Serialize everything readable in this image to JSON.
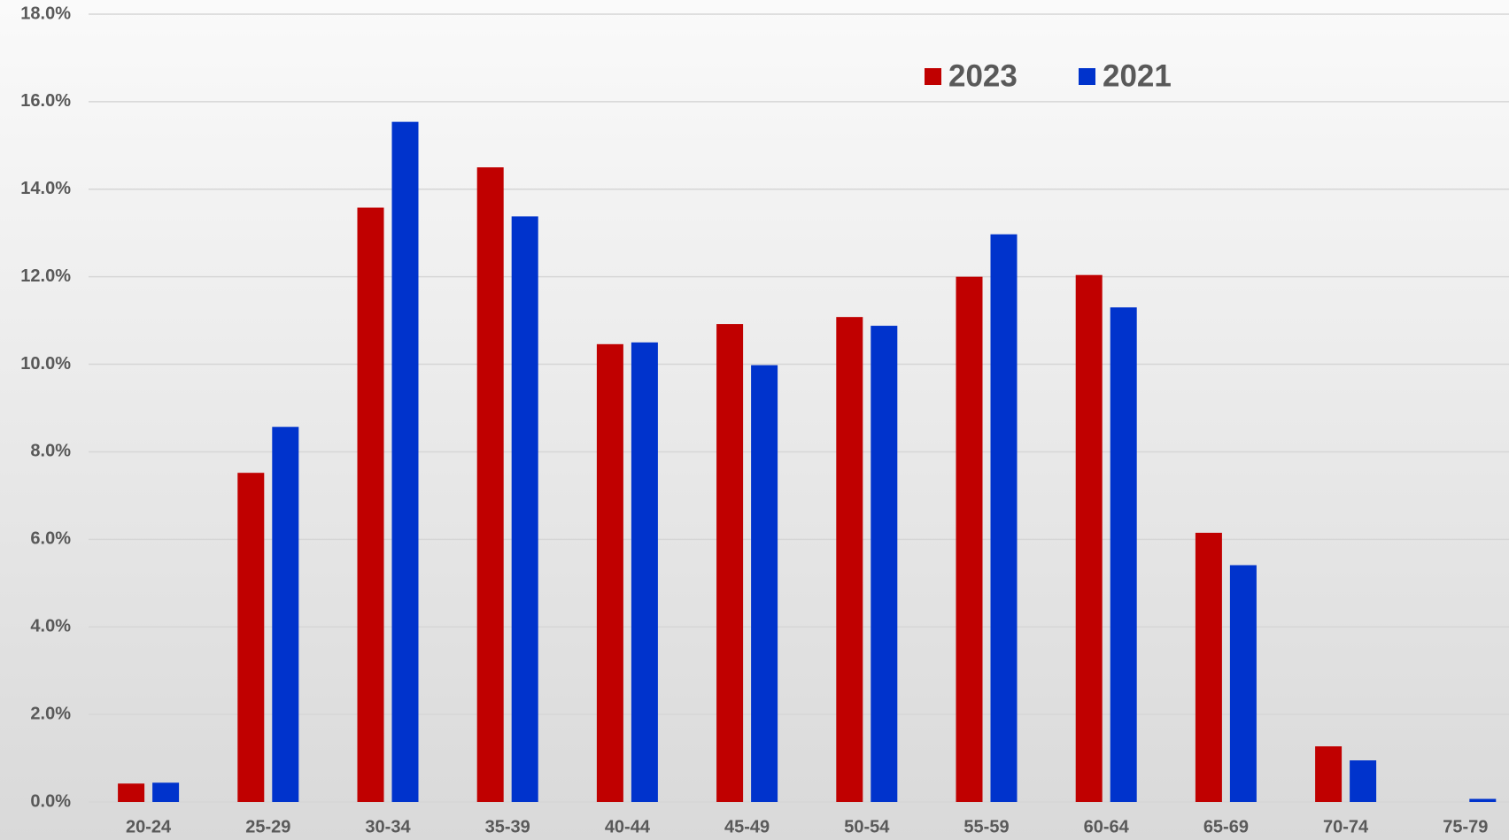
{
  "chart_data": {
    "type": "bar",
    "categories": [
      "20-24",
      "25-29",
      "30-34",
      "35-39",
      "40-44",
      "45-49",
      "50-54",
      "55-59",
      "60-64",
      "65-69",
      "70-74",
      "75-79"
    ],
    "series": [
      {
        "name": "2023",
        "color": "#c00000",
        "values": [
          0.42,
          7.52,
          13.58,
          14.5,
          10.46,
          10.92,
          11.08,
          12.0,
          12.04,
          6.15,
          1.27,
          0
        ]
      },
      {
        "name": "2021",
        "color": "#0033cc",
        "values": [
          0.44,
          8.57,
          15.54,
          13.38,
          10.5,
          9.98,
          10.88,
          12.97,
          11.3,
          5.41,
          0.95,
          0.07
        ]
      }
    ],
    "ylim": [
      0,
      18
    ],
    "yticks": [
      {
        "value": 0,
        "label": "0.0%"
      },
      {
        "value": 2,
        "label": "2.0%"
      },
      {
        "value": 4,
        "label": "4.0%"
      },
      {
        "value": 6,
        "label": "6.0%"
      },
      {
        "value": 8,
        "label": "8.0%"
      },
      {
        "value": 10,
        "label": "10.0%"
      },
      {
        "value": 12,
        "label": "12.0%"
      },
      {
        "value": 14,
        "label": "14.0%"
      },
      {
        "value": 16,
        "label": "16.0%"
      },
      {
        "value": 18,
        "label": "18.0%"
      }
    ],
    "grid": true,
    "legend": "top"
  }
}
